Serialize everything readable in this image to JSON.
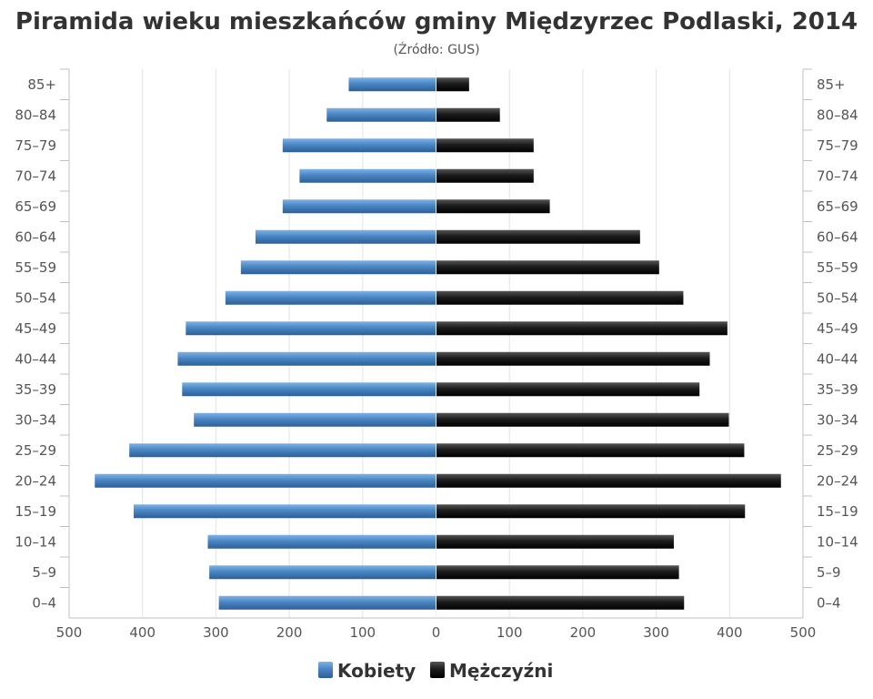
{
  "chart_data": {
    "type": "bar",
    "orientation": "horizontal",
    "title": "Piramida wieku mieszkańców gminy Międzyrzec Podlaski, 2014",
    "subtitle": "(Źródło: GUS)",
    "categories": [
      "85+",
      "80–84",
      "75–79",
      "70–74",
      "65–69",
      "60–64",
      "55–59",
      "50–54",
      "45–49",
      "40–44",
      "35–39",
      "30–34",
      "25–29",
      "20–24",
      "15–19",
      "10–14",
      "5–9",
      "0–4"
    ],
    "x_ticks": [
      "500",
      "400",
      "300",
      "200",
      "100",
      "0",
      "100",
      "200",
      "300",
      "400",
      "500"
    ],
    "xlim": [
      -500,
      500
    ],
    "grid": true,
    "legend_position": "bottom",
    "series": [
      {
        "name": "Kobiety",
        "color": "#4a86c4",
        "values": [
          119,
          149,
          209,
          186,
          209,
          246,
          266,
          287,
          341,
          352,
          346,
          330,
          418,
          465,
          412,
          311,
          309,
          296
        ]
      },
      {
        "name": "Mężczyźni",
        "color": "#222222",
        "values": [
          45,
          87,
          133,
          133,
          155,
          278,
          304,
          337,
          397,
          373,
          359,
          399,
          420,
          470,
          421,
          324,
          331,
          338
        ]
      }
    ]
  }
}
